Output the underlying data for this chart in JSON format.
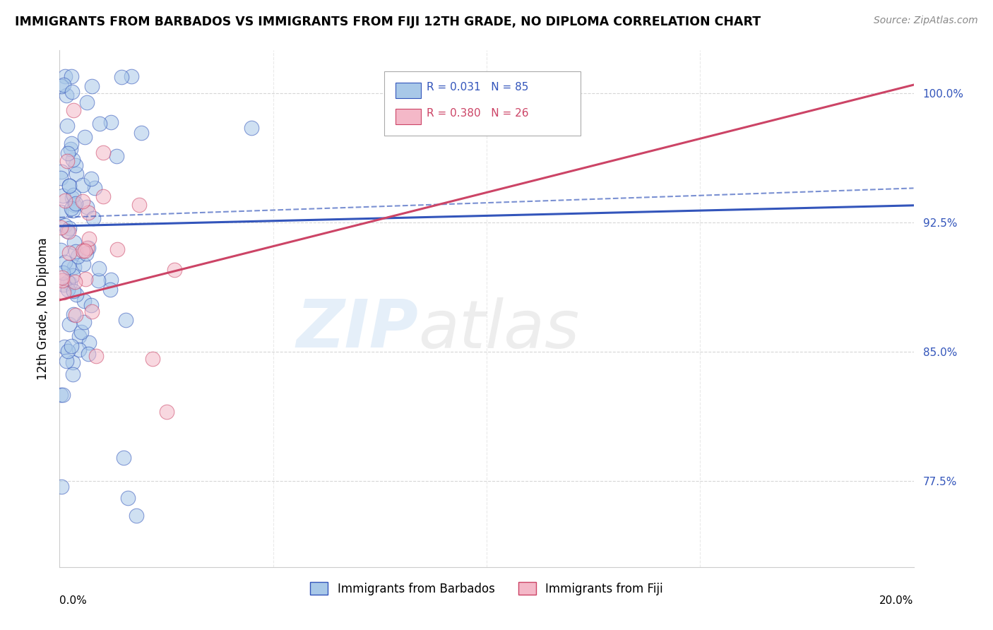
{
  "title": "IMMIGRANTS FROM BARBADOS VS IMMIGRANTS FROM FIJI 12TH GRADE, NO DIPLOMA CORRELATION CHART",
  "source": "Source: ZipAtlas.com",
  "ylabel": "12th Grade, No Diploma",
  "yticks": [
    77.5,
    85.0,
    92.5,
    100.0
  ],
  "ytick_labels": [
    "77.5%",
    "85.0%",
    "92.5%",
    "100.0%"
  ],
  "xmin": 0.0,
  "xmax": 20.0,
  "ymin": 72.5,
  "ymax": 102.5,
  "legend_r_barbados": "R = 0.031",
  "legend_n_barbados": "N = 85",
  "legend_r_fiji": "R = 0.380",
  "legend_n_fiji": "N = 26",
  "color_barbados": "#a8c8e8",
  "color_fiji": "#f4b8c8",
  "color_barbados_line": "#3355bb",
  "color_fiji_line": "#cc4466",
  "watermark_zip": "ZIP",
  "watermark_atlas": "atlas",
  "blue_trend_x0": 0.0,
  "blue_trend_y0": 92.3,
  "blue_trend_x1": 20.0,
  "blue_trend_y1": 93.5,
  "pink_trend_x0": 0.0,
  "pink_trend_y0": 88.0,
  "pink_trend_x1": 20.0,
  "pink_trend_y1": 100.5,
  "blue_dash_x0": 0.0,
  "blue_dash_y0": 92.8,
  "blue_dash_x1": 20.0,
  "blue_dash_y1": 94.5,
  "legend_label_barbados": "Immigrants from Barbados",
  "legend_label_fiji": "Immigrants from Fiji"
}
